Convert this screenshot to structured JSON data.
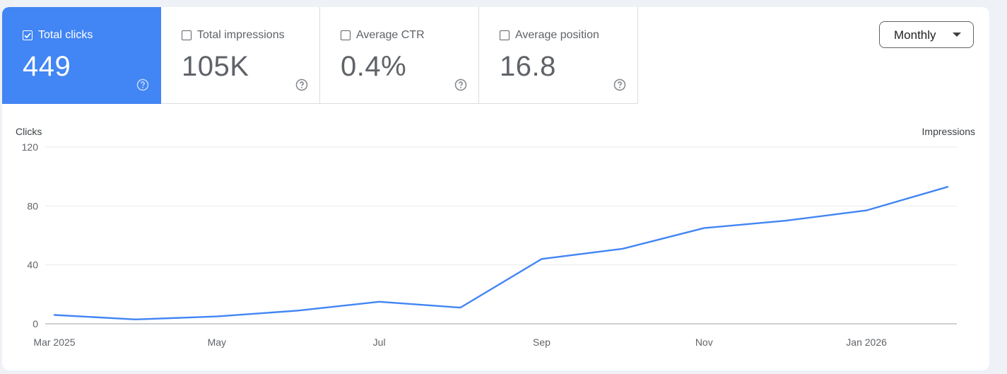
{
  "metrics": [
    {
      "label": "Total clicks",
      "value": "449",
      "checked": true
    },
    {
      "label": "Total impressions",
      "value": "105K",
      "checked": false
    },
    {
      "label": "Average CTR",
      "value": "0.4%",
      "checked": false
    },
    {
      "label": "Average position",
      "value": "16.8",
      "checked": false
    }
  ],
  "period_selector": {
    "selected": "Monthly"
  },
  "colors": {
    "accent": "#4285f4",
    "line": "#4285f4",
    "grid": "#e8eaed"
  },
  "icons": {
    "help": "help-circle-icon",
    "checkbox": "checkbox-icon",
    "caret": "caret-down-icon"
  },
  "chart_data": {
    "type": "line",
    "left_axis_label": "Clicks",
    "right_axis_label": "Impressions",
    "ylim": [
      0,
      120
    ],
    "yticks": [
      0,
      40,
      80,
      120
    ],
    "x": [
      "Mar 2025",
      "Apr 2025",
      "May 2025",
      "Jun 2025",
      "Jul 2025",
      "Aug 2025",
      "Sep 2025",
      "Oct 2025",
      "Nov 2025",
      "Dec 2025",
      "Jan 2026",
      "Feb 2026"
    ],
    "x_tick_labels": [
      "Mar 2025",
      "",
      "May",
      "",
      "Jul",
      "",
      "Sep",
      "",
      "Nov",
      "",
      "Jan 2026",
      ""
    ],
    "series": [
      {
        "values": [
          6,
          3,
          5,
          9,
          15,
          11,
          44,
          51,
          65,
          70,
          77,
          93
        ]
      }
    ],
    "grid": true
  }
}
